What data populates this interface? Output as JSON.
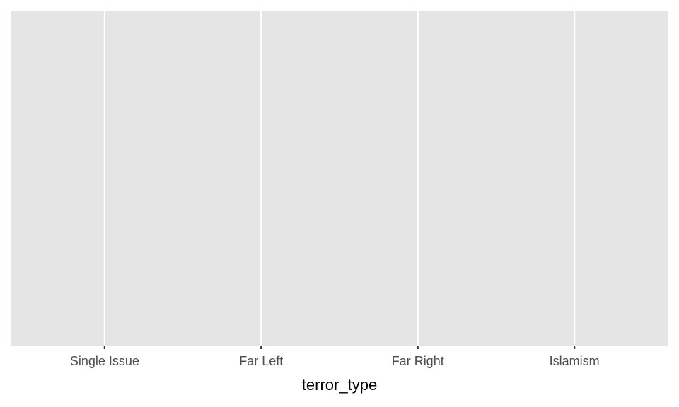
{
  "chart_data": {
    "type": "bar",
    "x_label": "terror_type",
    "categories": [
      "Single Issue",
      "Far Left",
      "Far Right",
      "Islamism"
    ],
    "grid": true
  }
}
